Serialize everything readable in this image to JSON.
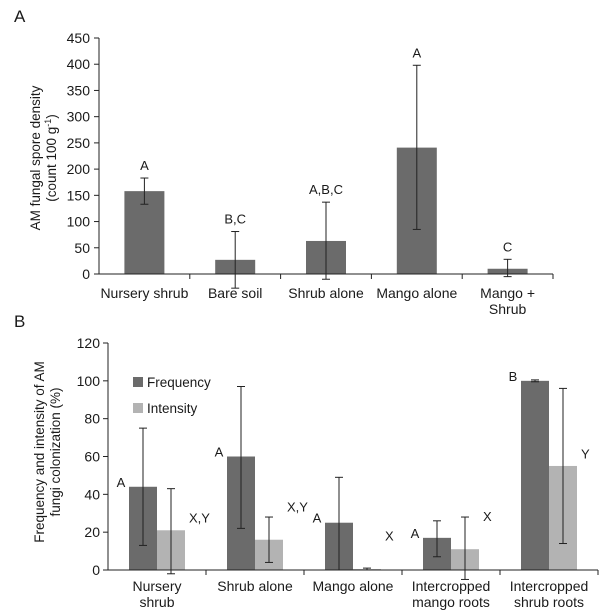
{
  "chart_data": [
    {
      "type": "bar",
      "panel": "A",
      "ylabel_lines": [
        "AM fungal spore density",
        "(count 100 g⁻¹)"
      ],
      "ylim": [
        0,
        450
      ],
      "yticks": [
        "0",
        "50",
        "100",
        "150",
        "200",
        "250",
        "300",
        "350",
        "400",
        "450"
      ],
      "categories": [
        [
          "Nursery shrub"
        ],
        [
          "Bare soil"
        ],
        [
          "Shrub alone"
        ],
        [
          "Mango alone"
        ],
        [
          "Mango +",
          "Shrub"
        ]
      ],
      "values": [
        158,
        27,
        63,
        241,
        10
      ],
      "error_low": [
        133,
        -27,
        -10,
        85,
        -5
      ],
      "error_high": [
        183,
        81,
        137,
        398,
        28
      ],
      "significance": [
        "A",
        "B,C",
        "A,B,C",
        "A",
        "C"
      ],
      "color": "#6b6b6b"
    },
    {
      "type": "bar",
      "panel": "B",
      "ylabel_lines": [
        "Frequency and intensity of AM",
        "fungi colonization (%)"
      ],
      "ylim": [
        0,
        120
      ],
      "yticks": [
        "0",
        "20",
        "40",
        "60",
        "80",
        "100",
        "120"
      ],
      "categories": [
        [
          "Nursery",
          "shrub"
        ],
        [
          "Shrub alone"
        ],
        [
          "Mango alone"
        ],
        [
          "Intercropped",
          "mango roots"
        ],
        [
          "Intercropped",
          "shrub roots"
        ]
      ],
      "series": [
        {
          "name": "Frequency",
          "color": "#6b6b6b",
          "values": [
            44,
            60,
            25,
            17,
            100
          ],
          "error_low": [
            13,
            22,
            0,
            7,
            99.5
          ],
          "error_high": [
            75,
            97,
            49,
            26,
            100.5
          ],
          "significance": [
            "A",
            "A",
            "A",
            "A",
            "B"
          ]
        },
        {
          "name": "Intensity",
          "color": "#b3b3b3",
          "values": [
            21,
            16,
            0.5,
            11,
            55
          ],
          "error_low": [
            -2,
            4,
            0,
            -5,
            14
          ],
          "error_high": [
            43,
            28,
            1,
            28,
            96
          ],
          "significance": [
            "X,Y",
            "X,Y",
            "X",
            "X",
            "Y"
          ]
        }
      ],
      "legend": "top-left"
    }
  ]
}
